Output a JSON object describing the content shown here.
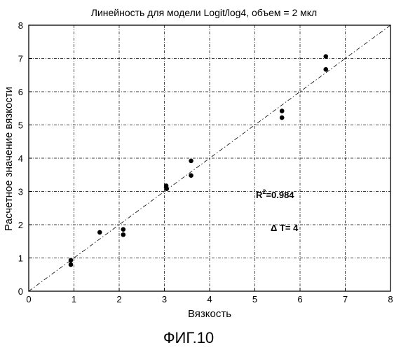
{
  "chart_data": {
    "type": "scatter",
    "title": "Линейность для модели Logit/log4, объем = 2 мкл",
    "xlabel": "Вязкость",
    "ylabel": "Расчетное значение вязкости",
    "xlim": [
      0,
      8
    ],
    "ylim": [
      0,
      8
    ],
    "xticks": [
      "0",
      "1",
      "2",
      "3",
      "4",
      "5",
      "6",
      "7",
      "8"
    ],
    "yticks": [
      "0",
      "1",
      "2",
      "3",
      "4",
      "5",
      "6",
      "7",
      "8"
    ],
    "grid": true,
    "reference_line": {
      "style": "dash-dot",
      "from": [
        0,
        0
      ],
      "to": [
        8,
        8
      ]
    },
    "points": [
      {
        "x": 0.93,
        "y": 0.93
      },
      {
        "x": 0.93,
        "y": 0.8
      },
      {
        "x": 1.57,
        "y": 1.77
      },
      {
        "x": 2.09,
        "y": 1.86
      },
      {
        "x": 2.09,
        "y": 1.7
      },
      {
        "x": 3.04,
        "y": 3.17
      },
      {
        "x": 3.04,
        "y": 3.12
      },
      {
        "x": 3.05,
        "y": 3.08
      },
      {
        "x": 3.59,
        "y": 3.92
      },
      {
        "x": 3.59,
        "y": 3.48
      },
      {
        "x": 5.6,
        "y": 5.42
      },
      {
        "x": 5.6,
        "y": 5.22
      },
      {
        "x": 6.57,
        "y": 7.06
      },
      {
        "x": 6.57,
        "y": 6.67
      }
    ],
    "annotations": {
      "r2_base": "R",
      "r2_sup": "2",
      "r2_value": "=0.984",
      "delta_t": "Δ T= 4"
    }
  },
  "figure": {
    "caption": "ФИГ.10"
  }
}
